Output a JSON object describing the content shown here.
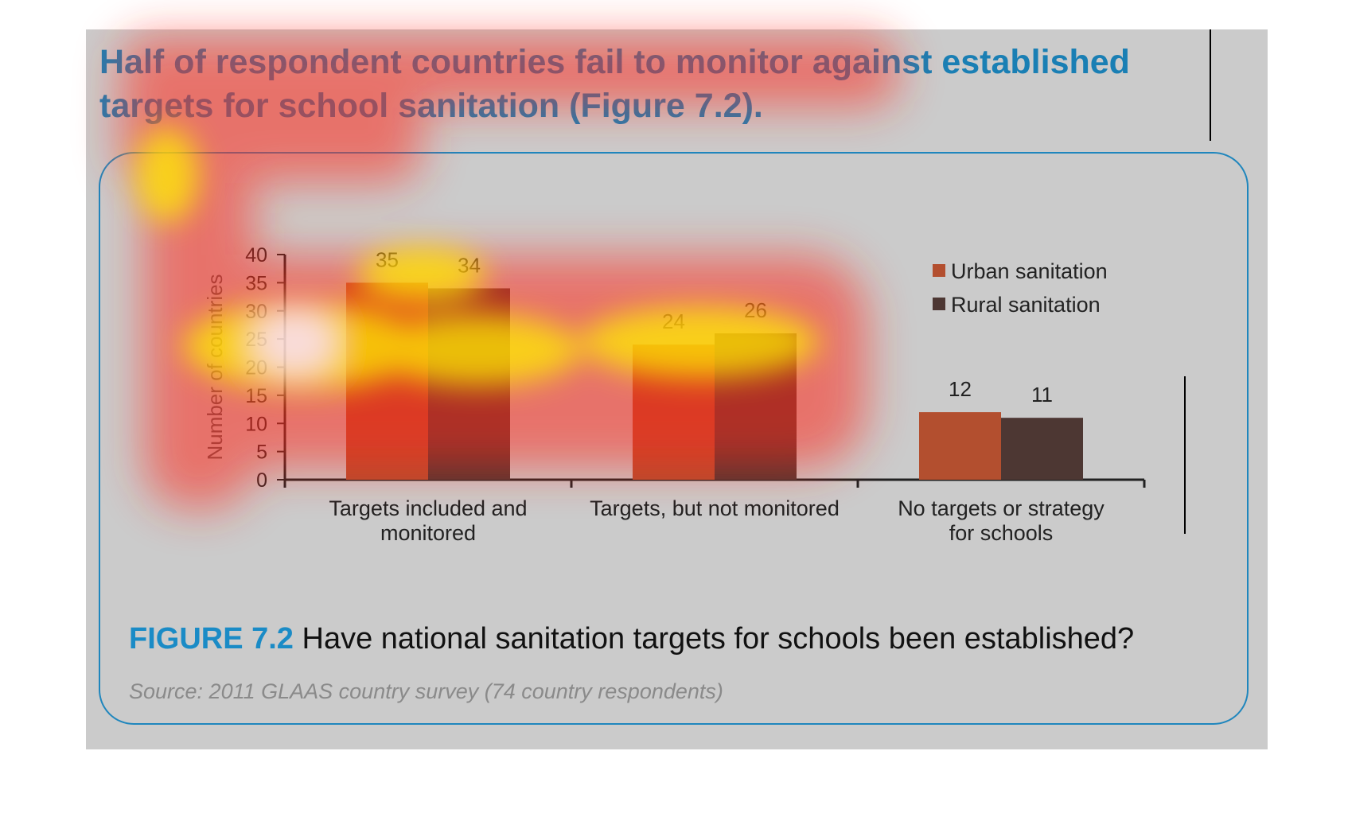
{
  "headline": "Half of respondent countries fail to monitor against established targets for school sanitation (Figure 7.2).",
  "caption": {
    "figure_label": "FIGURE 7.2",
    "text": "Have national sanitation targets for schools been established?"
  },
  "source": "Source: 2011 GLAAS country survey (74 country respondents)",
  "colors": {
    "urban": "#b34f2f",
    "rural": "#4d3733",
    "accent": "#1a8bc6",
    "panel": "#cbcbcb"
  },
  "chart_data": {
    "type": "bar",
    "title": "",
    "ylabel": "Number of countries",
    "xlabel": "",
    "ylim": [
      0,
      40
    ],
    "yticks": [
      0,
      5,
      10,
      15,
      20,
      25,
      30,
      35,
      40
    ],
    "categories": [
      [
        "Targets included and",
        "monitored"
      ],
      [
        "Targets, but not monitored"
      ],
      [
        "No targets or strategy",
        "for schools"
      ]
    ],
    "series": [
      {
        "name": "Urban sanitation",
        "values": [
          35,
          24,
          12
        ],
        "color": "#b34f2f"
      },
      {
        "name": "Rural sanitation",
        "values": [
          34,
          26,
          11
        ],
        "color": "#4d3733"
      }
    ],
    "legend_position": "top-right",
    "grid": false
  }
}
